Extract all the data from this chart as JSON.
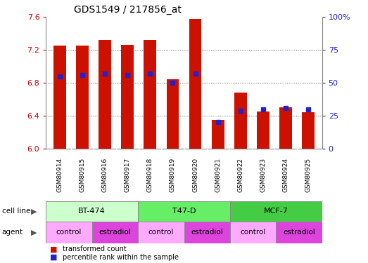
{
  "title": "GDS1549 / 217856_at",
  "samples": [
    "GSM80914",
    "GSM80915",
    "GSM80916",
    "GSM80917",
    "GSM80918",
    "GSM80919",
    "GSM80920",
    "GSM80921",
    "GSM80922",
    "GSM80923",
    "GSM80924",
    "GSM80925"
  ],
  "transformed_counts": [
    7.25,
    7.25,
    7.32,
    7.26,
    7.32,
    6.84,
    7.58,
    6.35,
    6.68,
    6.45,
    6.5,
    6.44
  ],
  "percentile_ranks": [
    55,
    56,
    57,
    56,
    57,
    50,
    57,
    20,
    29,
    30,
    31,
    30
  ],
  "ymin": 6.0,
  "ymax": 7.6,
  "yticks": [
    6.0,
    6.4,
    6.8,
    7.2,
    7.6
  ],
  "y2ticks": [
    0,
    25,
    50,
    75,
    100
  ],
  "bar_color": "#cc1100",
  "dot_color": "#2222cc",
  "cell_lines": [
    {
      "label": "BT-474",
      "start": 0,
      "end": 4,
      "color": "#ccffcc"
    },
    {
      "label": "T47-D",
      "start": 4,
      "end": 8,
      "color": "#66ee66"
    },
    {
      "label": "MCF-7",
      "start": 8,
      "end": 12,
      "color": "#44cc44"
    }
  ],
  "agents": [
    {
      "label": "control",
      "start": 0,
      "end": 2,
      "color": "#ffaaff"
    },
    {
      "label": "estradiol",
      "start": 2,
      "end": 4,
      "color": "#dd44dd"
    },
    {
      "label": "control",
      "start": 4,
      "end": 6,
      "color": "#ffaaff"
    },
    {
      "label": "estradiol",
      "start": 6,
      "end": 8,
      "color": "#dd44dd"
    },
    {
      "label": "control",
      "start": 8,
      "end": 10,
      "color": "#ffaaff"
    },
    {
      "label": "estradiol",
      "start": 10,
      "end": 12,
      "color": "#dd44dd"
    }
  ],
  "legend_red_label": "transformed count",
  "legend_blue_label": "percentile rank within the sample",
  "left_tick_color": "#cc0000",
  "right_tick_color": "#2222cc",
  "grid_color": "#555555",
  "bg_color": "#ffffff",
  "title_fontsize": 10,
  "sample_bg_color": "#cccccc",
  "separator_color": "#ffffff"
}
